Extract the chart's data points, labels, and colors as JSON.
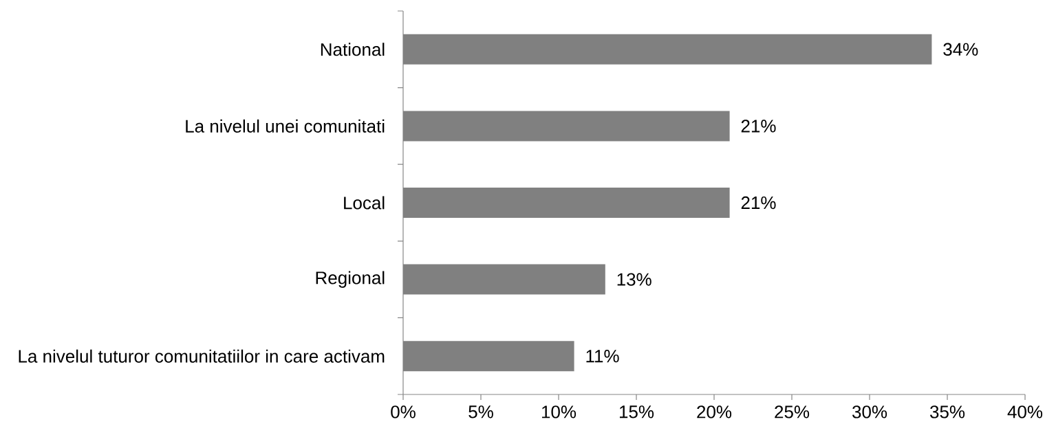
{
  "chart_data": {
    "type": "bar",
    "orientation": "horizontal",
    "categories": [
      "National",
      "La nivelul unei comunitati",
      "Local",
      "Regional",
      "La nivelul tuturor comunitatiilor in care activam"
    ],
    "values": [
      34,
      21,
      21,
      13,
      11
    ],
    "value_labels": [
      "34%",
      "21%",
      "21%",
      "13%",
      "11%"
    ],
    "color": "#808080",
    "xlim": [
      0,
      40
    ],
    "xticks": [
      {
        "value": 0,
        "label": "0%"
      },
      {
        "value": 5,
        "label": "5%"
      },
      {
        "value": 10,
        "label": "10%"
      },
      {
        "value": 15,
        "label": "15%"
      },
      {
        "value": 20,
        "label": "20%"
      },
      {
        "value": 25,
        "label": "25%"
      },
      {
        "value": 30,
        "label": "30%"
      },
      {
        "value": 35,
        "label": "35%"
      },
      {
        "value": 40,
        "label": "40%"
      }
    ]
  }
}
